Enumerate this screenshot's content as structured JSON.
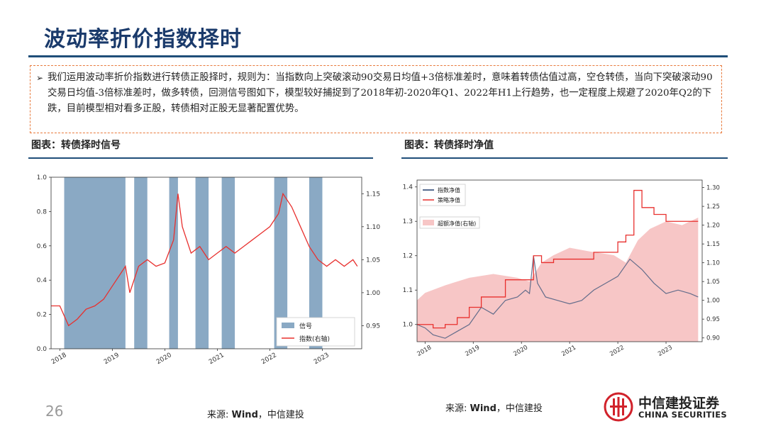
{
  "header": {
    "title": "波动率折价指数择时"
  },
  "note": {
    "bullet": "➢",
    "text": "我们运用波动率折价指数进行转债正股择时，规则为：当指数向上突破滚动90交易日均值+3倍标准差时，意味着转债估值过高，空仓转债，当向下突破滚动90交易日均值-3倍标准差时，做多转债，回测信号图如下，模型较好捕捉到了2018年初-2020年Q1、2022年H1上行趋势，也一定程度上规避了2020年Q2的下跌，目前模型相对看多正股，转债相对正股无显著配置优势。"
  },
  "captions": {
    "left": "图表：转债择时信号",
    "right": "图表：转债择时净值"
  },
  "footer": {
    "page_number": "26",
    "source_left_prefix": "来源: ",
    "source_left_bold": "Wind",
    "source_left_suffix": "，中信建投",
    "source_right_prefix": "来源: ",
    "source_right_bold": "Wind",
    "source_right_suffix": "，中信建投",
    "logo_cn": "中信建投证券",
    "logo_en": "CHINA SECURITIES"
  },
  "colors": {
    "accent": "#1f4e79",
    "signal": "#8aa9c4",
    "index": "#e8302e",
    "nav_index": "#1f3a6b",
    "excess": "#f7c6c6"
  },
  "chart_data": [
    {
      "type": "bar",
      "description_note": "",
      "x_ticks": [
        "2018",
        "2019",
        "2020",
        "2021",
        "2022",
        "2023"
      ],
      "ylim": [
        0.0,
        1.0
      ],
      "yticks": [
        "0.0",
        "0.2",
        "0.4",
        "0.6",
        "0.8",
        "1.0"
      ],
      "y2lim": [
        0.915,
        1.175
      ],
      "y2ticks": [
        "0.95",
        "1.00",
        "1.05",
        "1.10",
        "1.15"
      ],
      "legend": [
        "信号",
        "指数(右轴)"
      ],
      "legend_position": "lower-right",
      "signal_periods": [
        [
          "2018-02",
          "2019-04"
        ],
        [
          "2019-06",
          "2019-09"
        ],
        [
          "2020-02",
          "2020-04"
        ],
        [
          "2020-08",
          "2020-11"
        ],
        [
          "2021-02",
          "2021-05"
        ],
        [
          "2022-02",
          "2022-05"
        ],
        [
          "2022-10",
          "2023-01"
        ]
      ],
      "index_series": {
        "name": "指数(右轴)",
        "points": [
          [
            "2017-11",
            0.98
          ],
          [
            "2018-01",
            0.98
          ],
          [
            "2018-03",
            0.95
          ],
          [
            "2018-05",
            0.96
          ],
          [
            "2018-07",
            0.975
          ],
          [
            "2018-09",
            0.98
          ],
          [
            "2018-11",
            0.99
          ],
          [
            "2019-01",
            1.01
          ],
          [
            "2019-03",
            1.03
          ],
          [
            "2019-04",
            1.04
          ],
          [
            "2019-05",
            1.0
          ],
          [
            "2019-07",
            1.04
          ],
          [
            "2019-09",
            1.05
          ],
          [
            "2019-11",
            1.04
          ],
          [
            "2020-01",
            1.045
          ],
          [
            "2020-03",
            1.08
          ],
          [
            "2020-04",
            1.15
          ],
          [
            "2020-05",
            1.1
          ],
          [
            "2020-07",
            1.06
          ],
          [
            "2020-09",
            1.07
          ],
          [
            "2020-11",
            1.05
          ],
          [
            "2021-01",
            1.06
          ],
          [
            "2021-03",
            1.07
          ],
          [
            "2021-05",
            1.06
          ],
          [
            "2021-07",
            1.07
          ],
          [
            "2021-09",
            1.08
          ],
          [
            "2021-11",
            1.09
          ],
          [
            "2022-01",
            1.1
          ],
          [
            "2022-03",
            1.12
          ],
          [
            "2022-04",
            1.15
          ],
          [
            "2022-06",
            1.13
          ],
          [
            "2022-08",
            1.1
          ],
          [
            "2022-10",
            1.07
          ],
          [
            "2022-12",
            1.05
          ],
          [
            "2023-02",
            1.04
          ],
          [
            "2023-04",
            1.05
          ],
          [
            "2023-06",
            1.04
          ],
          [
            "2023-08",
            1.05
          ],
          [
            "2023-09",
            1.04
          ]
        ]
      }
    },
    {
      "type": "line",
      "x_ticks": [
        "2018",
        "2019",
        "2020",
        "2021",
        "2022",
        "2023"
      ],
      "ylim": [
        0.95,
        1.42
      ],
      "yticks": [
        "1.0",
        "1.1",
        "1.2",
        "1.3",
        "1.4"
      ],
      "y2lim": [
        0.89,
        1.32
      ],
      "y2ticks": [
        "0.90",
        "0.95",
        "1.00",
        "1.05",
        "1.10",
        "1.15",
        "1.20",
        "1.25",
        "1.30"
      ],
      "legend": [
        "指数净值",
        "策略净值",
        "超额净值(右轴)"
      ],
      "legend_position": "top-left",
      "series": [
        {
          "name": "指数净值",
          "points": [
            [
              "2017-11",
              1.0
            ],
            [
              "2018-01",
              0.99
            ],
            [
              "2018-03",
              0.97
            ],
            [
              "2018-06",
              0.96
            ],
            [
              "2018-09",
              0.98
            ],
            [
              "2018-12",
              1.0
            ],
            [
              "2019-03",
              1.05
            ],
            [
              "2019-06",
              1.03
            ],
            [
              "2019-09",
              1.07
            ],
            [
              "2019-12",
              1.08
            ],
            [
              "2020-02",
              1.1
            ],
            [
              "2020-03",
              1.09
            ],
            [
              "2020-04",
              1.2
            ],
            [
              "2020-05",
              1.12
            ],
            [
              "2020-07",
              1.08
            ],
            [
              "2020-10",
              1.07
            ],
            [
              "2021-01",
              1.06
            ],
            [
              "2021-04",
              1.07
            ],
            [
              "2021-07",
              1.1
            ],
            [
              "2021-10",
              1.12
            ],
            [
              "2022-01",
              1.14
            ],
            [
              "2022-04",
              1.19
            ],
            [
              "2022-07",
              1.16
            ],
            [
              "2022-10",
              1.12
            ],
            [
              "2023-01",
              1.09
            ],
            [
              "2023-04",
              1.1
            ],
            [
              "2023-07",
              1.09
            ],
            [
              "2023-09",
              1.08
            ]
          ]
        },
        {
          "name": "策略净值",
          "points": [
            [
              "2017-11",
              1.0
            ],
            [
              "2018-01",
              1.0
            ],
            [
              "2018-03",
              0.99
            ],
            [
              "2018-06",
              1.0
            ],
            [
              "2018-09",
              1.02
            ],
            [
              "2018-12",
              1.05
            ],
            [
              "2019-03",
              1.08
            ],
            [
              "2019-06",
              1.08
            ],
            [
              "2019-09",
              1.13
            ],
            [
              "2019-12",
              1.13
            ],
            [
              "2020-02",
              1.13
            ],
            [
              "2020-04",
              1.2
            ],
            [
              "2020-06",
              1.18
            ],
            [
              "2020-09",
              1.19
            ],
            [
              "2021-01",
              1.19
            ],
            [
              "2021-04",
              1.19
            ],
            [
              "2021-07",
              1.21
            ],
            [
              "2021-10",
              1.21
            ],
            [
              "2022-01",
              1.24
            ],
            [
              "2022-03",
              1.26
            ],
            [
              "2022-05",
              1.39
            ],
            [
              "2022-07",
              1.34
            ],
            [
              "2022-10",
              1.32
            ],
            [
              "2023-01",
              1.3
            ],
            [
              "2023-04",
              1.3
            ],
            [
              "2023-09",
              1.3
            ]
          ]
        },
        {
          "name": "超额净值(右轴)",
          "type": "area",
          "points": [
            [
              "2017-11",
              1.0
            ],
            [
              "2018-01",
              1.02
            ],
            [
              "2018-06",
              1.04
            ],
            [
              "2018-12",
              1.06
            ],
            [
              "2019-06",
              1.07
            ],
            [
              "2019-12",
              1.06
            ],
            [
              "2020-03",
              1.05
            ],
            [
              "2020-06",
              1.1
            ],
            [
              "2020-09",
              1.12
            ],
            [
              "2021-01",
              1.14
            ],
            [
              "2021-06",
              1.13
            ],
            [
              "2021-12",
              1.12
            ],
            [
              "2022-03",
              1.1
            ],
            [
              "2022-06",
              1.16
            ],
            [
              "2022-09",
              1.19
            ],
            [
              "2023-01",
              1.21
            ],
            [
              "2023-05",
              1.2
            ],
            [
              "2023-09",
              1.22
            ]
          ]
        }
      ]
    }
  ]
}
